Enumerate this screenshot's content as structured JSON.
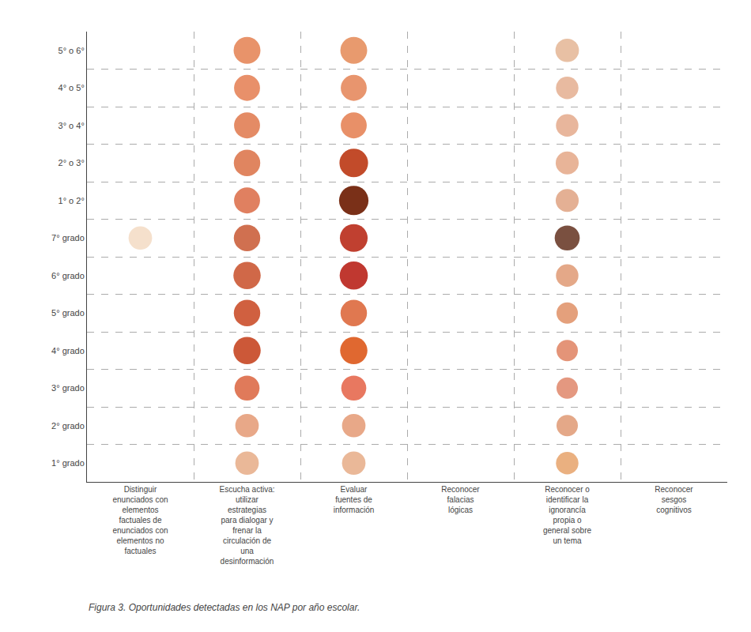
{
  "chart_data": {
    "type": "scatter",
    "marker": "circle",
    "annotations": [
      "Figura 3. Oportunidades detectadas en los NAP por año escolar."
    ],
    "x": [
      "Distinguir\nenunciados con\nelementos\nfactuales de\nenunciados con\nelementos no\nfactuales",
      "Escucha activa:\nutilizar\nestrategias\npara dialogar y\nfrenar la\ncirculación de\nuna\ndesinformación",
      "Evaluar\nfuentes de\ninformación",
      "Reconocer\nfalacias\nlógicas",
      "Reconocer o\nidentificar la\nignorancía\npropia o\ngeneral sobre\nun tema",
      "Reconocer\nsesgos\ncognitivos"
    ],
    "y": [
      "5° o 6°",
      "4° o 5°",
      "3° o 4°",
      "2° o 3°",
      "1° o 2°",
      "7° grado",
      "6° grado",
      "5° grado",
      "4° grado",
      "3° grado",
      "2° grado",
      "1° grado"
    ],
    "colors": [
      [
        null,
        "#E8936A",
        "#E89A6E",
        null,
        "#E8C0A4",
        null
      ],
      [
        null,
        "#E8906A",
        "#E8956E",
        null,
        "#E8BAA0",
        null
      ],
      [
        null,
        "#E48B65",
        "#E89068",
        null,
        "#E8B69C",
        null
      ],
      [
        null,
        "#E08560",
        "#C24B2A",
        null,
        "#E8B498",
        null
      ],
      [
        null,
        "#E08060",
        "#7A3018",
        null,
        "#E4B094",
        null
      ],
      [
        "#F5E0CC",
        "#D07050",
        "#C04030",
        null,
        "#7A5040",
        null
      ],
      [
        null,
        "#D06848",
        "#C03830",
        null,
        "#E4A888",
        null
      ],
      [
        null,
        "#D06040",
        "#E07850",
        null,
        "#E4A07C",
        null
      ],
      [
        null,
        "#CC5838",
        "#E06830",
        null,
        "#E49478",
        null
      ],
      [
        null,
        "#E07A5A",
        "#E87860",
        null,
        "#E49880",
        null
      ],
      [
        null,
        "#E8A888",
        "#E8A888",
        null,
        "#E4A888",
        null
      ],
      [
        null,
        "#EAB898",
        "#EAB898",
        null,
        "#EAB080",
        null
      ]
    ],
    "sizes": [
      [
        0,
        300,
        300,
        0,
        230,
        0
      ],
      [
        0,
        280,
        280,
        0,
        210,
        0
      ],
      [
        0,
        280,
        280,
        0,
        210,
        0
      ],
      [
        0,
        290,
        340,
        0,
        220,
        0
      ],
      [
        0,
        280,
        360,
        0,
        220,
        0
      ],
      [
        230,
        290,
        320,
        0,
        260,
        0
      ],
      [
        0,
        310,
        330,
        0,
        210,
        0
      ],
      [
        0,
        290,
        290,
        0,
        190,
        0
      ],
      [
        0,
        310,
        310,
        0,
        190,
        0
      ],
      [
        0,
        260,
        260,
        0,
        190,
        0
      ],
      [
        0,
        230,
        230,
        0,
        190,
        0
      ],
      [
        0,
        230,
        230,
        0,
        210,
        0
      ]
    ],
    "grid": true
  }
}
